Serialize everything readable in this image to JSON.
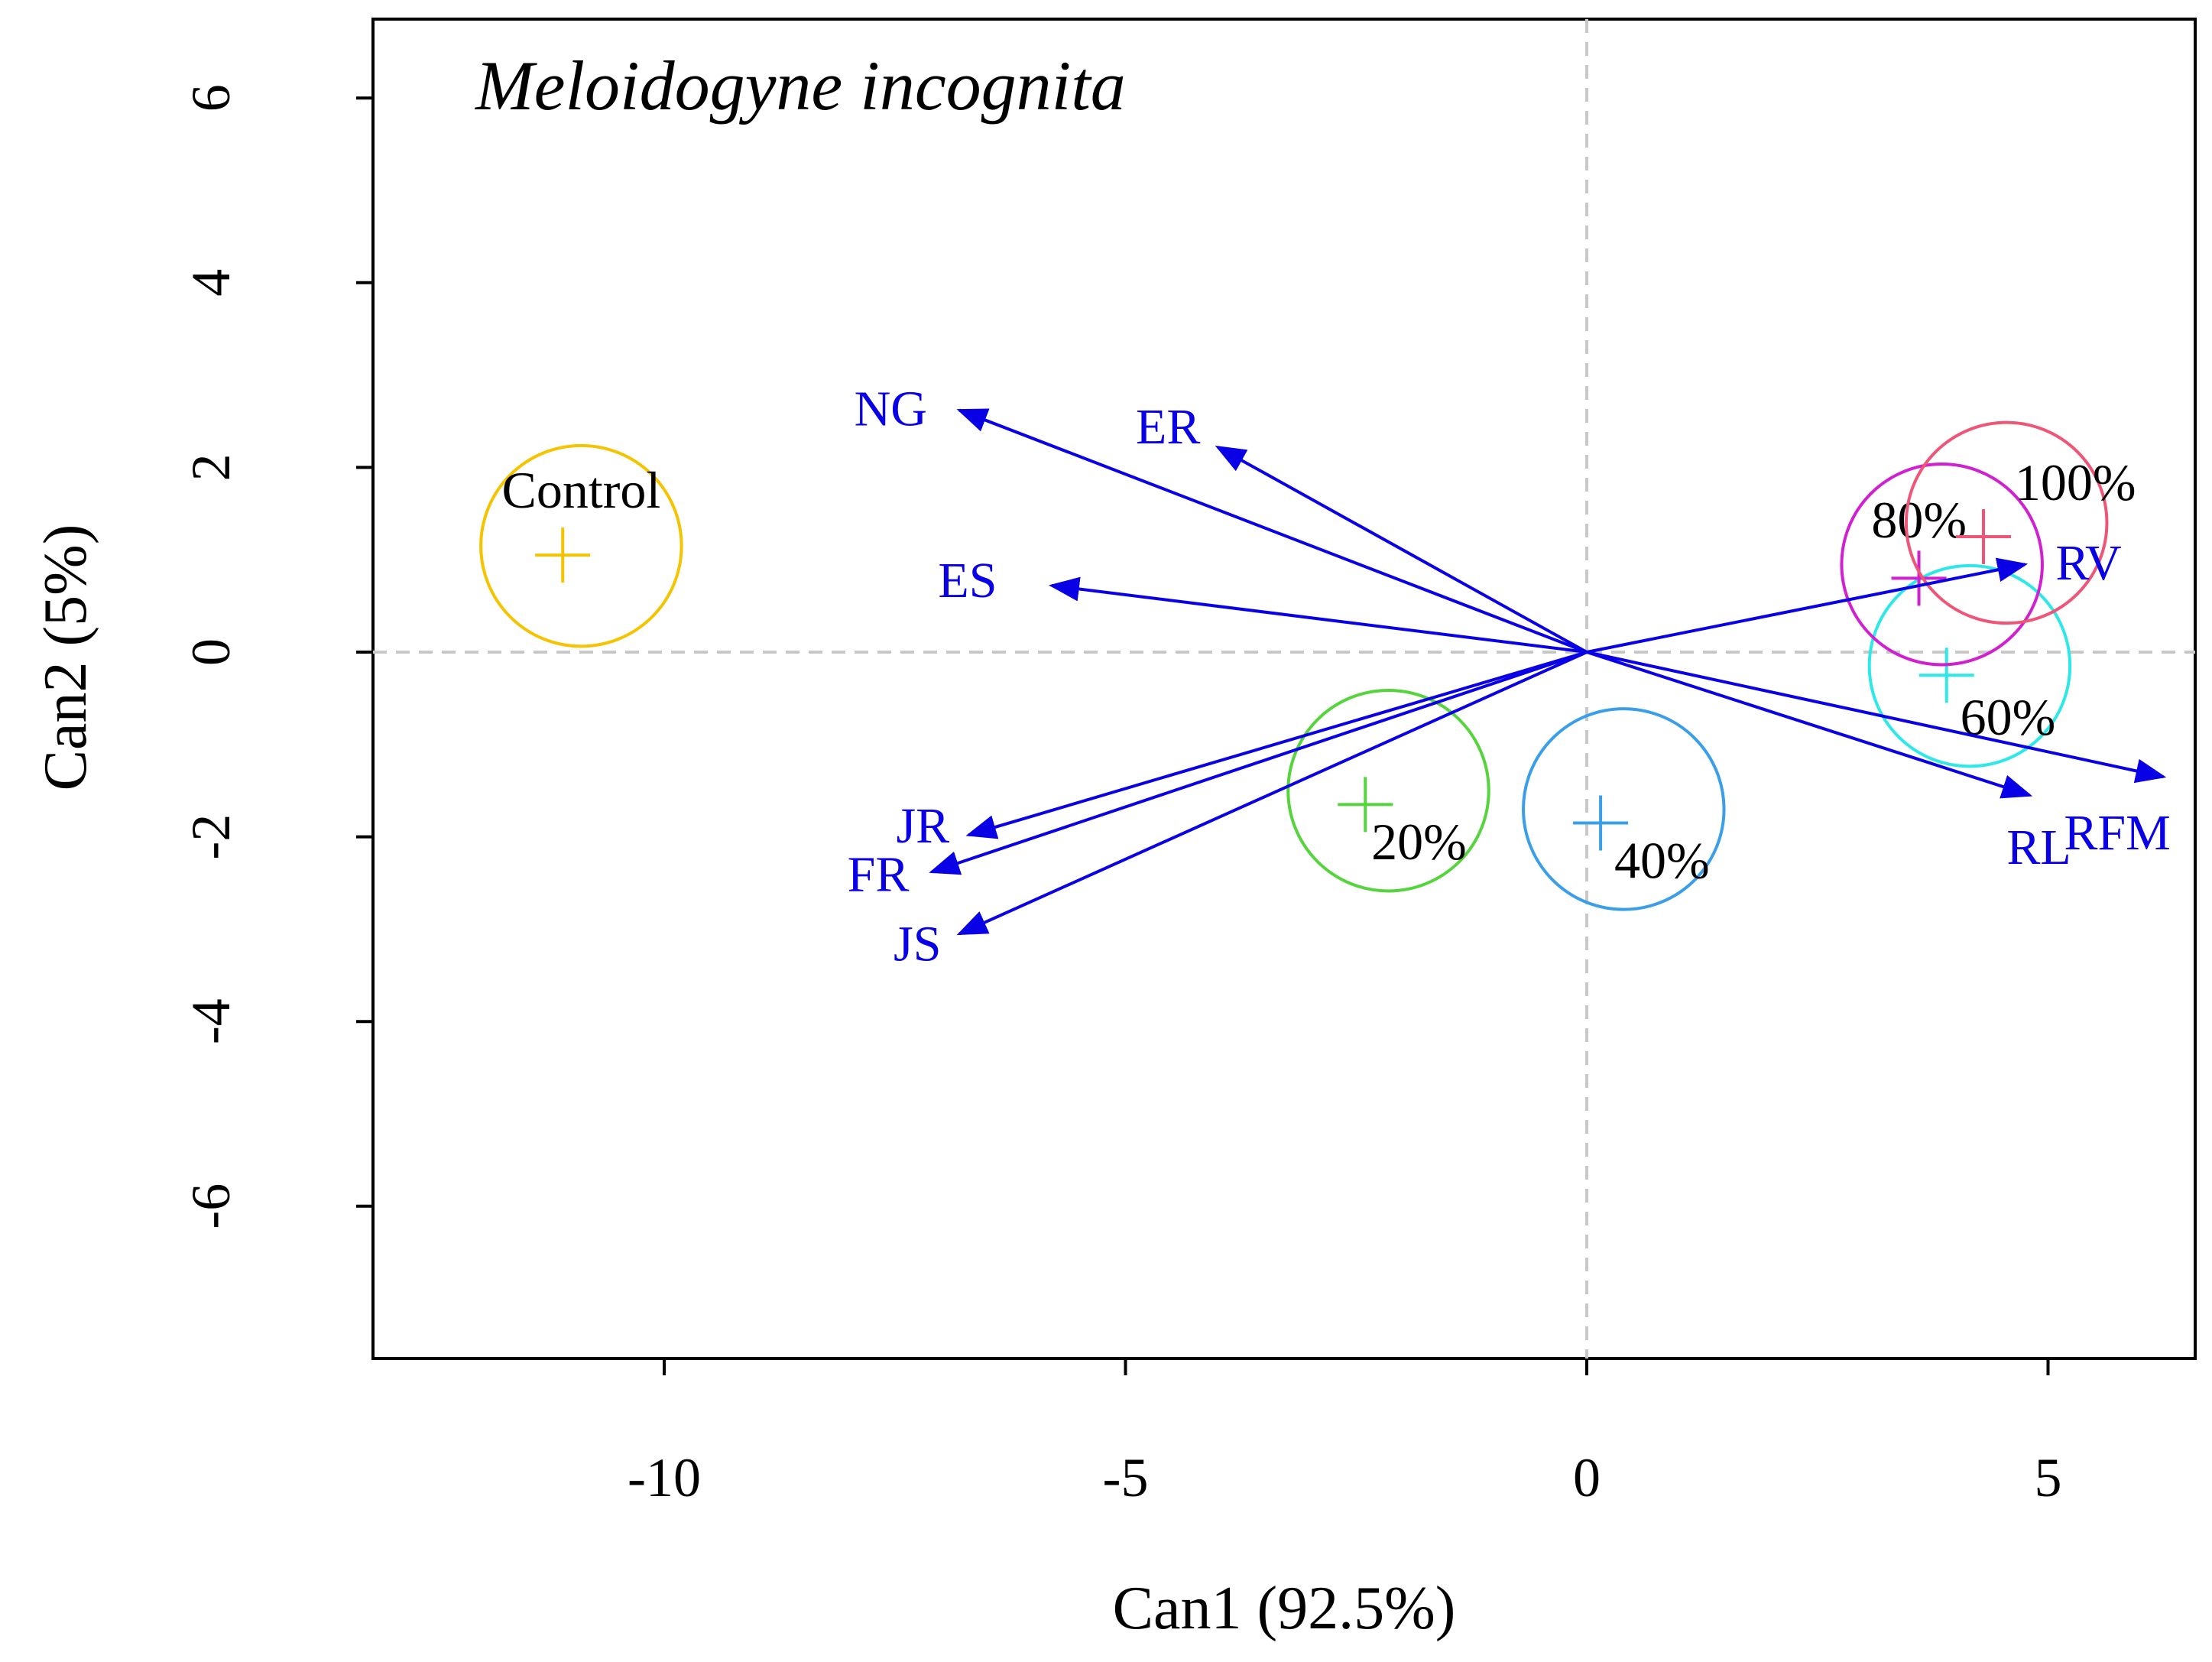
{
  "chart_data": {
    "type": "scatter",
    "title": "Meloidogyne incognita",
    "xlabel": "Can1 (92.5%)",
    "ylabel": "Can2 (5%)",
    "xlim": [
      -13.1,
      6.6
    ],
    "ylim": [
      -7.6,
      6.9
    ],
    "xticks": [
      -10,
      -5,
      0,
      5
    ],
    "yticks": [
      -6,
      -4,
      -2,
      0,
      2,
      4,
      6
    ],
    "reference_lines": {
      "x": 0,
      "y": 0
    },
    "colors": {
      "vectors": "#0a00e6",
      "reference_lines": "#c8c8c8"
    },
    "groups": [
      {
        "name": "Control",
        "x": -11.1,
        "y": 1.05,
        "circle_center": [
          -10.9,
          1.15
        ],
        "radius": 1.05,
        "color": "#f5c400"
      },
      {
        "name": "20%",
        "x": -2.4,
        "y": -1.65,
        "circle_center": [
          -2.15,
          -1.5
        ],
        "radius": 1.05,
        "color": "#55d43d"
      },
      {
        "name": "40%",
        "x": 0.15,
        "y": -1.85,
        "circle_center": [
          0.4,
          -1.7
        ],
        "radius": 1.05,
        "color": "#3a9ee8"
      },
      {
        "name": "60%",
        "x": 3.9,
        "y": -0.25,
        "circle_center": [
          4.15,
          -0.15
        ],
        "radius": 1.05,
        "color": "#2ee8e8"
      },
      {
        "name": "80%",
        "x": 3.6,
        "y": 0.8,
        "circle_center": [
          3.85,
          0.95
        ],
        "radius": 1.05,
        "color": "#d020d0"
      },
      {
        "name": "100%",
        "x": 4.3,
        "y": 1.25,
        "circle_center": [
          4.55,
          1.4
        ],
        "radius": 1.05,
        "color": "#ee5577"
      }
    ],
    "vectors": [
      {
        "name": "NG",
        "x": -6.8,
        "y": 2.62
      },
      {
        "name": "ER",
        "x": -4.0,
        "y": 2.22
      },
      {
        "name": "ES",
        "x": -5.8,
        "y": 0.72
      },
      {
        "name": "JR",
        "x": -6.7,
        "y": -1.98
      },
      {
        "name": "FR",
        "x": -7.1,
        "y": -2.38
      },
      {
        "name": "JS",
        "x": -6.8,
        "y": -3.05
      },
      {
        "name": "RV",
        "x": 4.75,
        "y": 0.95
      },
      {
        "name": "RL",
        "x": 4.8,
        "y": -1.55
      },
      {
        "name": "RFM",
        "x": 6.25,
        "y": -1.35
      }
    ]
  }
}
